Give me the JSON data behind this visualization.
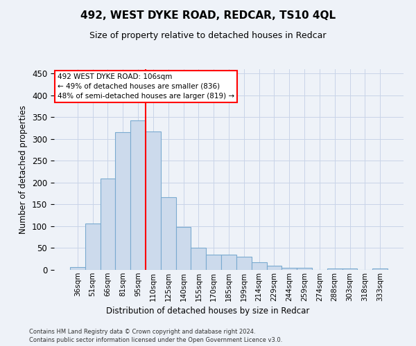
{
  "title": "492, WEST DYKE ROAD, REDCAR, TS10 4QL",
  "subtitle": "Size of property relative to detached houses in Redcar",
  "xlabel": "Distribution of detached houses by size in Redcar",
  "ylabel": "Number of detached properties",
  "categories": [
    "36sqm",
    "51sqm",
    "66sqm",
    "81sqm",
    "95sqm",
    "110sqm",
    "125sqm",
    "140sqm",
    "155sqm",
    "170sqm",
    "185sqm",
    "199sqm",
    "214sqm",
    "229sqm",
    "244sqm",
    "259sqm",
    "274sqm",
    "288sqm",
    "303sqm",
    "318sqm",
    "333sqm"
  ],
  "values": [
    7,
    107,
    210,
    315,
    343,
    318,
    167,
    99,
    50,
    35,
    35,
    30,
    17,
    10,
    5,
    5,
    0,
    3,
    3,
    0,
    3
  ],
  "bar_color": "#ccdaec",
  "bar_edge_color": "#7aaad0",
  "vline_color": "red",
  "vline_x_index": 4.5,
  "annotation_text": "492 WEST DYKE ROAD: 106sqm\n← 49% of detached houses are smaller (836)\n48% of semi-detached houses are larger (819) →",
  "annotation_box_color": "white",
  "annotation_box_edge_color": "red",
  "grid_color": "#c8d4e8",
  "background_color": "#eef2f8",
  "footnote1": "Contains HM Land Registry data © Crown copyright and database right 2024.",
  "footnote2": "Contains public sector information licensed under the Open Government Licence v3.0.",
  "ylim": [
    0,
    460
  ],
  "yticks": [
    0,
    50,
    100,
    150,
    200,
    250,
    300,
    350,
    400,
    450
  ]
}
